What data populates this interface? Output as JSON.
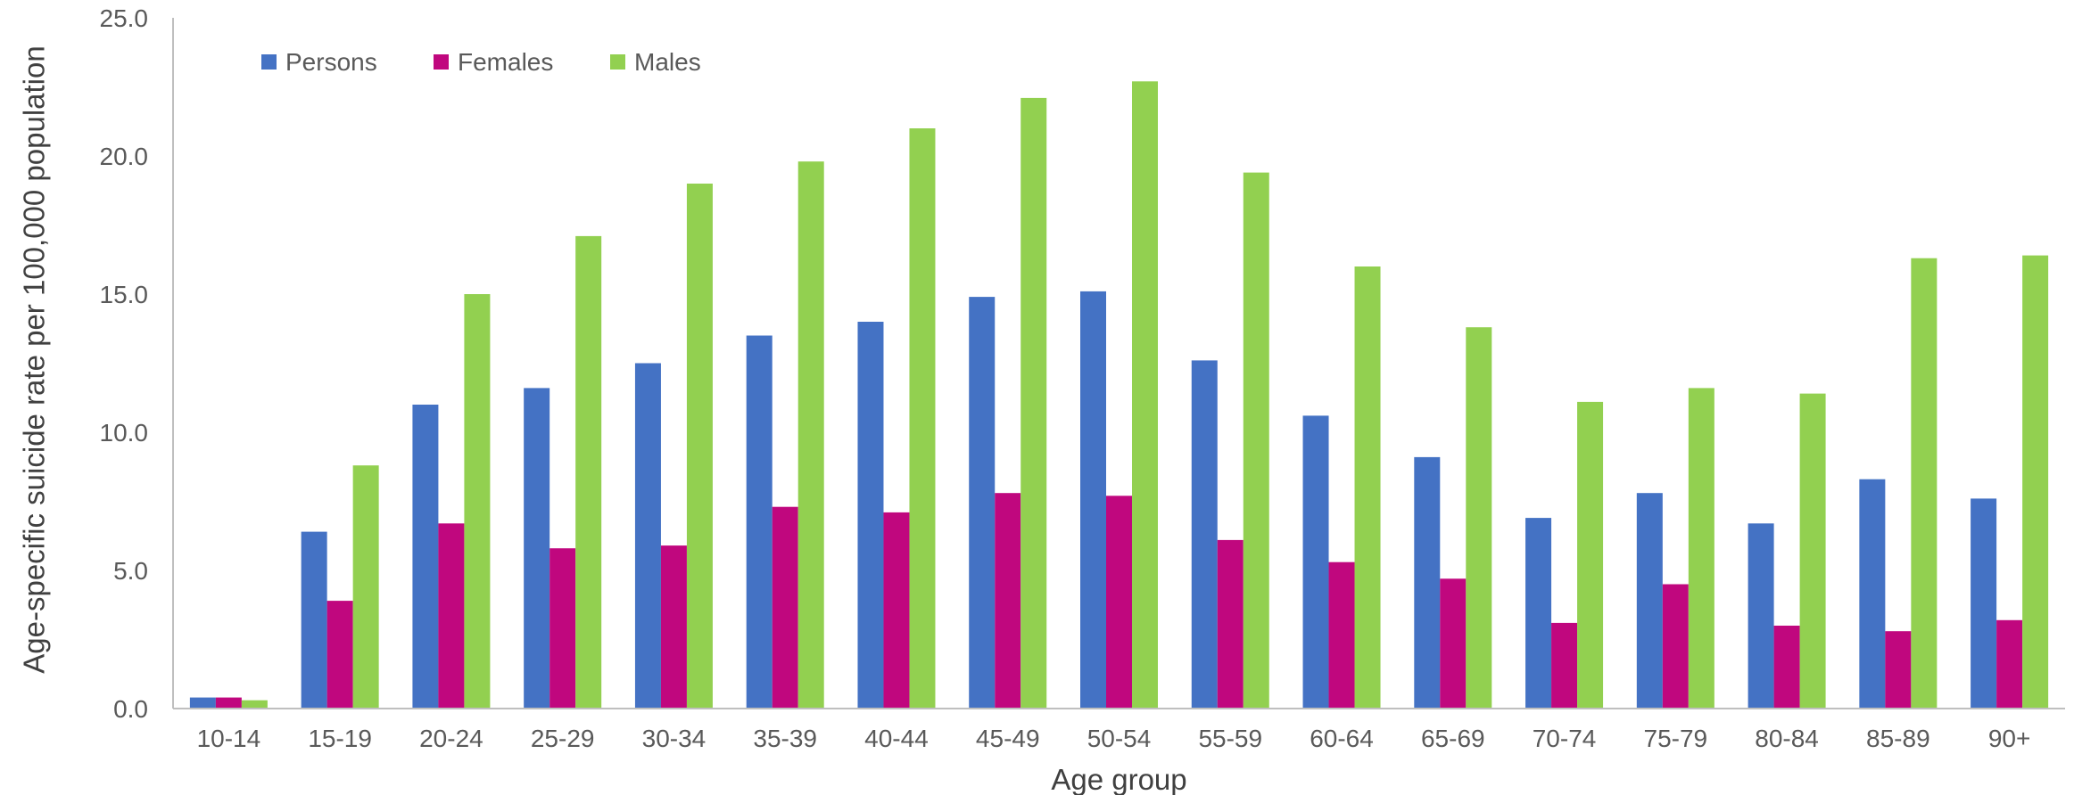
{
  "chart_data": {
    "type": "bar",
    "title": "",
    "xlabel": "Age group",
    "ylabel": "Age-specific suicide rate per 100,000 population",
    "ylim": [
      0,
      25
    ],
    "yticks": [
      "0.0",
      "5.0",
      "10.0",
      "15.0",
      "20.0",
      "25.0"
    ],
    "categories": [
      "10-14",
      "15-19",
      "20-24",
      "25-29",
      "30-34",
      "35-39",
      "40-44",
      "45-49",
      "50-54",
      "55-59",
      "60-64",
      "65-69",
      "70-74",
      "75-79",
      "80-84",
      "85-89",
      "90+"
    ],
    "series": [
      {
        "name": "Persons",
        "color": "#4472C4",
        "values": [
          0.4,
          6.4,
          11.0,
          11.6,
          12.5,
          13.5,
          14.0,
          14.9,
          15.1,
          12.6,
          10.6,
          9.1,
          6.9,
          7.8,
          6.7,
          8.3,
          7.6
        ]
      },
      {
        "name": "Females",
        "color": "#C0077E",
        "values": [
          0.4,
          3.9,
          6.7,
          5.8,
          5.9,
          7.3,
          7.1,
          7.8,
          7.7,
          6.1,
          5.3,
          4.7,
          3.1,
          4.5,
          3.0,
          2.8,
          3.2
        ]
      },
      {
        "name": "Males",
        "color": "#92D050",
        "values": [
          0.3,
          8.8,
          15.0,
          17.1,
          19.0,
          19.8,
          21.0,
          22.1,
          22.7,
          19.4,
          16.0,
          13.8,
          11.1,
          11.6,
          11.4,
          16.3,
          16.4
        ]
      }
    ],
    "legend": "top-left",
    "grid": false
  }
}
